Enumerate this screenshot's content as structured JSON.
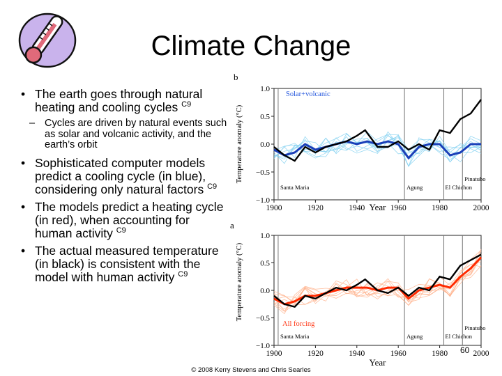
{
  "slide": {
    "title": "Climate Change",
    "bullets": [
      {
        "text": "The earth goes through natural heating and cooling cycles",
        "cite": "C9"
      },
      {
        "sub": "Cycles are driven by natural events such as solar and volcanic activity, and the earth’s orbit"
      },
      {
        "text": "Sophisticated computer models predict a cooling cycle (in blue), considering only natural factors",
        "cite": "C9"
      },
      {
        "text": "The models predict a heating cycle (in red), when accounting for human activity",
        "cite": "C9"
      },
      {
        "text": "The actual measured temperature (in black) is consistent with the model with human activity",
        "cite": "C9"
      }
    ],
    "footer": "© 2008 Kerry Stevens and Chris Searles",
    "page_number": "60"
  },
  "colors": {
    "observed": "#000000",
    "natural_model": "#1a3fb8",
    "natural_runs": "#7fd0f0",
    "human_model": "#ff2a00",
    "human_runs": "#ffb08a",
    "thermometer": "#e06a7a",
    "logo_bg": "#c9b3ec"
  },
  "icons": {
    "logo": "thermometer-icon"
  },
  "chart_data": [
    {
      "type": "line",
      "panel_label": "b",
      "legend": "Solar+volcanic",
      "ylabel": "Temperature anomaly (°C)",
      "xlabel": "Year",
      "xlim": [
        1900,
        2000
      ],
      "ylim": [
        -1.0,
        1.0
      ],
      "xticks": [
        "1900",
        "1920",
        "1940",
        "1960",
        "1980",
        "2000"
      ],
      "yticks": [
        "1.0",
        "0.5",
        "0.0",
        "−0.5",
        "−1.0"
      ],
      "events": [
        {
          "label": "Santa Maria",
          "year": 1902
        },
        {
          "label": "Agung",
          "year": 1963
        },
        {
          "label": "El Chichon",
          "year": 1982
        },
        {
          "label": "Pinatubo",
          "year": 1991
        }
      ],
      "series": [
        {
          "role": "observed",
          "x": [
            1900,
            1905,
            1910,
            1915,
            1920,
            1925,
            1930,
            1935,
            1940,
            1944,
            1950,
            1955,
            1960,
            1965,
            1970,
            1975,
            1980,
            1985,
            1990,
            1995,
            2000
          ],
          "values": [
            -0.05,
            -0.2,
            -0.3,
            -0.05,
            -0.15,
            -0.05,
            0.0,
            0.05,
            0.15,
            0.25,
            -0.05,
            -0.05,
            0.05,
            -0.1,
            0.0,
            -0.1,
            0.25,
            0.2,
            0.45,
            0.55,
            0.8
          ]
        },
        {
          "role": "model",
          "x": [
            1900,
            1905,
            1910,
            1915,
            1920,
            1925,
            1930,
            1935,
            1940,
            1945,
            1950,
            1955,
            1960,
            1965,
            1970,
            1975,
            1980,
            1985,
            1990,
            1995,
            2000
          ],
          "values": [
            -0.1,
            -0.2,
            -0.15,
            0.0,
            -0.1,
            -0.05,
            0.0,
            0.05,
            0.0,
            0.05,
            0.0,
            0.05,
            0.0,
            -0.25,
            -0.05,
            0.0,
            0.0,
            -0.2,
            -0.15,
            0.0,
            0.0
          ]
        }
      ]
    },
    {
      "type": "line",
      "panel_label": "a",
      "legend": "All forcing",
      "ylabel": "Temperature anomaly (°C)",
      "xlabel": "Year",
      "xlim": [
        1900,
        2000
      ],
      "ylim": [
        -1.0,
        1.0
      ],
      "xticks": [
        "1900",
        "1920",
        "1940",
        "1960",
        "1980",
        "2000"
      ],
      "yticks": [
        "1.0",
        "0.5",
        "0.0",
        "−0.5",
        "−1.0"
      ],
      "events": [
        {
          "label": "Santa Maria",
          "year": 1902
        },
        {
          "label": "Agung",
          "year": 1963
        },
        {
          "label": "El Chichon",
          "year": 1982
        },
        {
          "label": "Pinatubo",
          "year": 1991
        }
      ],
      "series": [
        {
          "role": "observed",
          "x": [
            1900,
            1905,
            1910,
            1915,
            1920,
            1925,
            1930,
            1935,
            1940,
            1944,
            1950,
            1955,
            1960,
            1965,
            1970,
            1975,
            1980,
            1985,
            1990,
            1995,
            2000
          ],
          "values": [
            -0.1,
            -0.25,
            -0.3,
            -0.1,
            -0.15,
            -0.05,
            0.05,
            0.0,
            0.1,
            0.2,
            0.0,
            -0.05,
            0.05,
            -0.1,
            0.05,
            0.0,
            0.25,
            0.2,
            0.45,
            0.55,
            0.65
          ]
        },
        {
          "role": "model",
          "x": [
            1900,
            1905,
            1910,
            1915,
            1920,
            1925,
            1930,
            1935,
            1940,
            1945,
            1950,
            1955,
            1960,
            1965,
            1970,
            1975,
            1980,
            1985,
            1990,
            1995,
            2000
          ],
          "values": [
            -0.15,
            -0.25,
            -0.2,
            -0.1,
            -0.1,
            -0.05,
            0.0,
            0.05,
            0.05,
            0.05,
            0.0,
            0.05,
            0.05,
            -0.15,
            0.0,
            0.05,
            0.1,
            0.05,
            0.25,
            0.4,
            0.6
          ]
        }
      ]
    }
  ]
}
